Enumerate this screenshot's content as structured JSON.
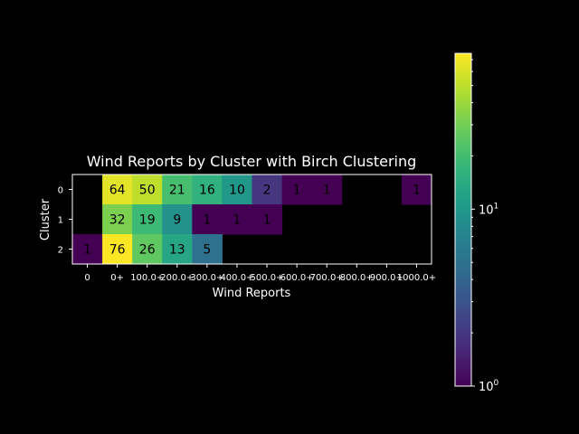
{
  "chart_data": {
    "type": "heatmap",
    "title": "Wind Reports by Cluster with Birch Clustering",
    "xlabel": "Wind Reports",
    "ylabel": "Cluster",
    "x_categories": [
      "0",
      "0+",
      "100.0+",
      "200.0+",
      "300.0+",
      "400.0+",
      "500.0+",
      "600.0+",
      "700.0+",
      "800.0+",
      "900.0+",
      "1000.0+"
    ],
    "y_categories": [
      "0",
      "1",
      "2"
    ],
    "values": [
      [
        null,
        64,
        50,
        21,
        16,
        10,
        2,
        1,
        1,
        null,
        null,
        1
      ],
      [
        null,
        32,
        19,
        9,
        1,
        1,
        1,
        null,
        null,
        null,
        null,
        null
      ],
      [
        1,
        76,
        26,
        13,
        5,
        null,
        null,
        null,
        null,
        null,
        null,
        null
      ]
    ],
    "colorbar": {
      "scale": "log",
      "range": [
        1,
        76
      ],
      "colormap": "viridis",
      "tick_labels": [
        "10^0",
        "10^1"
      ],
      "tick_values": [
        1,
        10
      ]
    },
    "colors": {
      "background": "#000000",
      "text": "#ffffff",
      "cell_text": "#000000"
    },
    "grid": false
  }
}
